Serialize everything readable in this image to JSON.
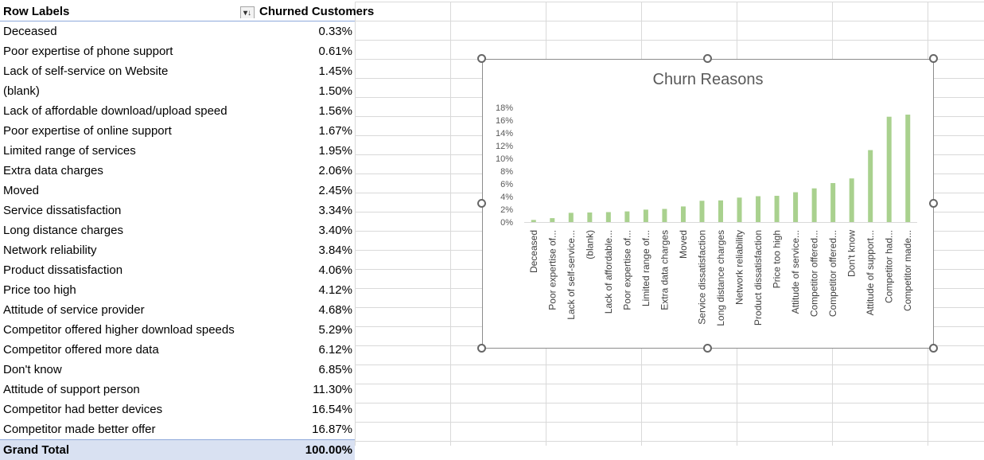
{
  "pivot": {
    "header_label": "Row Labels",
    "header_value": "Churned Customers",
    "filter_icon": "sort-filter-icon",
    "rows": [
      {
        "label": "Deceased",
        "value": "0.33%"
      },
      {
        "label": "Poor expertise of phone support",
        "value": "0.61%"
      },
      {
        "label": "Lack of self-service on Website",
        "value": "1.45%"
      },
      {
        "label": "(blank)",
        "value": "1.50%"
      },
      {
        "label": "Lack of affordable download/upload speed",
        "value": "1.56%"
      },
      {
        "label": "Poor expertise of online support",
        "value": "1.67%"
      },
      {
        "label": "Limited range of services",
        "value": "1.95%"
      },
      {
        "label": "Extra data charges",
        "value": "2.06%"
      },
      {
        "label": "Moved",
        "value": "2.45%"
      },
      {
        "label": "Service dissatisfaction",
        "value": "3.34%"
      },
      {
        "label": "Long distance charges",
        "value": "3.40%"
      },
      {
        "label": "Network reliability",
        "value": "3.84%"
      },
      {
        "label": "Product dissatisfaction",
        "value": "4.06%"
      },
      {
        "label": "Price too high",
        "value": "4.12%"
      },
      {
        "label": "Attitude of service provider",
        "value": "4.68%"
      },
      {
        "label": "Competitor offered higher download speeds",
        "value": "5.29%"
      },
      {
        "label": "Competitor offered more data",
        "value": "6.12%"
      },
      {
        "label": "Don't know",
        "value": "6.85%"
      },
      {
        "label": "Attitude of support person",
        "value": "11.30%"
      },
      {
        "label": "Competitor had better devices",
        "value": "16.54%"
      },
      {
        "label": "Competitor made better offer",
        "value": "16.87%"
      }
    ],
    "total_label": "Grand Total",
    "total_value": "100.00%"
  },
  "colors": {
    "bar": "#a9d18e",
    "total_fill": "#d9e1f2",
    "header_border": "#8ea9db",
    "axis_text": "#595959"
  },
  "chart_data": {
    "type": "bar",
    "title": "Churn Reasons",
    "xlabel": "",
    "ylabel": "",
    "ylim": [
      0,
      18
    ],
    "yticks": [
      "0%",
      "2%",
      "4%",
      "6%",
      "8%",
      "10%",
      "12%",
      "14%",
      "16%",
      "18%"
    ],
    "grid": false,
    "legend": "none",
    "categories": [
      "Deceased",
      "Poor expertise of...",
      "Lack of self-service...",
      "(blank)",
      "Lack of affordable...",
      "Poor expertise of...",
      "Limited range of...",
      "Extra data charges",
      "Moved",
      "Service dissatisfaction",
      "Long distance charges",
      "Network reliability",
      "Product dissatisfaction",
      "Price too high",
      "Attitude of service...",
      "Competitor offered...",
      "Competitor offered...",
      "Don't know",
      "Attitude of support...",
      "Competitor had...",
      "Competitor made..."
    ],
    "values": [
      0.33,
      0.61,
      1.45,
      1.5,
      1.56,
      1.67,
      1.95,
      2.06,
      2.45,
      3.34,
      3.4,
      3.84,
      4.06,
      4.12,
      4.68,
      5.29,
      6.12,
      6.85,
      11.3,
      16.54,
      16.87
    ]
  }
}
